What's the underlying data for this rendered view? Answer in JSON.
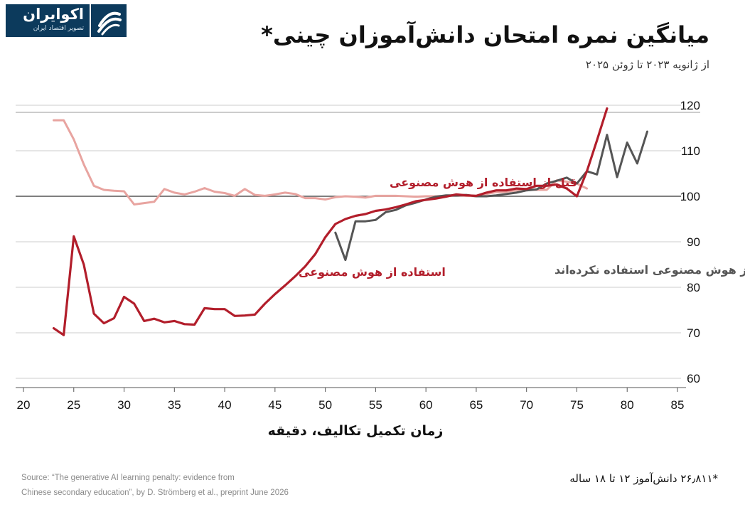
{
  "header": {
    "logo_name": "اکوایران",
    "logo_tagline": "تصویر اقتصاد ایران",
    "title": "میانگین نمره امتحان دانش‌آموزان چینی*",
    "subtitle": "از ژانویه ۲۰۲۳ تا ژوئن ۲۰۲۵"
  },
  "footer": {
    "source_line1": "Source: “The generative AI learning penalty: evidence from",
    "source_line2": "Chinese secondary education”, by D. Strömberg et al., preprint June 2026",
    "footnote": "*۲۶٫۸۱۱ دانش‌آموز ۱۲ تا ۱۸ ساله"
  },
  "colors": {
    "brand": "#0c3a5c",
    "grid": "#cccccc",
    "baseline": "#555555"
  },
  "chart_data": {
    "type": "line",
    "xlabel": "زمان تکمیل تکالیف، دقیقه",
    "ylabel": "",
    "xlim": [
      19,
      87
    ],
    "ylim": [
      58,
      122
    ],
    "xticks": [
      20,
      25,
      30,
      35,
      40,
      45,
      50,
      55,
      60,
      65,
      70,
      75,
      80,
      85
    ],
    "yticks": [
      60,
      70,
      80,
      90,
      100,
      110,
      120
    ],
    "reference_line": 100,
    "grid": "horizontal",
    "series": [
      {
        "name": "قبل از استفاده از هوش مصنوعی",
        "color": "#e8a4a0",
        "points": [
          [
            23,
            116.7
          ],
          [
            24,
            116.7
          ],
          [
            25,
            112.5
          ],
          [
            26,
            107
          ],
          [
            27,
            102.3
          ],
          [
            28,
            101.4
          ],
          [
            29,
            101.2
          ],
          [
            30,
            101.1
          ],
          [
            31,
            98.2
          ],
          [
            32,
            98.5
          ],
          [
            33,
            98.8
          ],
          [
            34,
            101.6
          ],
          [
            35,
            100.8
          ],
          [
            36,
            100.4
          ],
          [
            37,
            101
          ],
          [
            38,
            101.8
          ],
          [
            39,
            101
          ],
          [
            40,
            100.7
          ],
          [
            41,
            100.1
          ],
          [
            42,
            101.6
          ],
          [
            43,
            100.3
          ],
          [
            44,
            100.1
          ],
          [
            45,
            100.4
          ],
          [
            46,
            100.8
          ],
          [
            47,
            100.5
          ],
          [
            48,
            99.6
          ],
          [
            49,
            99.6
          ],
          [
            50,
            99.3
          ],
          [
            51,
            99.8
          ],
          [
            52,
            100
          ],
          [
            53,
            99.9
          ],
          [
            54,
            99.7
          ],
          [
            55,
            100.1
          ],
          [
            56,
            100.1
          ],
          [
            57,
            100.1
          ],
          [
            58,
            100
          ],
          [
            59,
            99.9
          ],
          [
            60,
            100
          ],
          [
            61,
            100
          ],
          [
            62,
            100.1
          ],
          [
            63,
            100.2
          ],
          [
            64,
            100.1
          ],
          [
            65,
            100
          ],
          [
            66,
            100.5
          ],
          [
            67,
            100.9
          ],
          [
            68,
            101
          ],
          [
            69,
            101.3
          ],
          [
            70,
            101.5
          ],
          [
            71,
            101.4
          ],
          [
            72,
            101.4
          ],
          [
            73,
            103.5
          ],
          [
            74,
            103.2
          ],
          [
            75,
            102.8
          ],
          [
            76,
            101.7
          ]
        ]
      },
      {
        "name": "هرگز از هوش مصنوعی استفاده نکرده‌اند",
        "color": "#555555",
        "points": [
          [
            51,
            92
          ],
          [
            52,
            86
          ],
          [
            53,
            94.5
          ],
          [
            54,
            94.5
          ],
          [
            55,
            94.8
          ],
          [
            56,
            96.5
          ],
          [
            57,
            97
          ],
          [
            58,
            98
          ],
          [
            59,
            98.6
          ],
          [
            60,
            99.3
          ],
          [
            61,
            99.9
          ],
          [
            62,
            100.2
          ],
          [
            63,
            100.2
          ],
          [
            64,
            100.3
          ],
          [
            65,
            100
          ],
          [
            66,
            100
          ],
          [
            67,
            100.2
          ],
          [
            68,
            100.5
          ],
          [
            69,
            100.8
          ],
          [
            70,
            101.3
          ],
          [
            71,
            101.5
          ],
          [
            72,
            102.8
          ],
          [
            73,
            103.4
          ],
          [
            74,
            104.1
          ],
          [
            75,
            102.8
          ],
          [
            76,
            105.5
          ],
          [
            77,
            104.8
          ],
          [
            78,
            113.5
          ],
          [
            79,
            104.2
          ],
          [
            80,
            111.8
          ],
          [
            81,
            107.2
          ],
          [
            82,
            114.2
          ]
        ]
      },
      {
        "name": "استفاده از هوش مصنوعی",
        "color": "#b21e2b",
        "points": [
          [
            23,
            71
          ],
          [
            24,
            69.5
          ],
          [
            25,
            91.2
          ],
          [
            26,
            85
          ],
          [
            27,
            74.2
          ],
          [
            28,
            72.1
          ],
          [
            29,
            73.2
          ],
          [
            30,
            77.9
          ],
          [
            31,
            76.4
          ],
          [
            32,
            72.6
          ],
          [
            33,
            73.1
          ],
          [
            34,
            72.3
          ],
          [
            35,
            72.6
          ],
          [
            36,
            71.9
          ],
          [
            37,
            71.8
          ],
          [
            38,
            75.4
          ],
          [
            39,
            75.2
          ],
          [
            40,
            75.2
          ],
          [
            41,
            73.7
          ],
          [
            42,
            73.8
          ],
          [
            43,
            74
          ],
          [
            44,
            76.4
          ],
          [
            45,
            78.5
          ],
          [
            46,
            80.4
          ],
          [
            47,
            82.4
          ],
          [
            48,
            84.6
          ],
          [
            49,
            87.3
          ],
          [
            50,
            91
          ],
          [
            51,
            93.9
          ],
          [
            52,
            95
          ],
          [
            53,
            95.7
          ],
          [
            54,
            96.1
          ],
          [
            55,
            96.8
          ],
          [
            56,
            97.1
          ],
          [
            57,
            97.6
          ],
          [
            58,
            98.2
          ],
          [
            59,
            98.9
          ],
          [
            60,
            99.2
          ],
          [
            61,
            99.5
          ],
          [
            62,
            99.9
          ],
          [
            63,
            100.4
          ],
          [
            64,
            100.2
          ],
          [
            65,
            100.1
          ],
          [
            66,
            100.8
          ],
          [
            67,
            101.3
          ],
          [
            68,
            101.3
          ],
          [
            69,
            101.7
          ],
          [
            70,
            101.6
          ],
          [
            71,
            102.3
          ],
          [
            72,
            102.3
          ],
          [
            73,
            102.6
          ],
          [
            74,
            101.7
          ],
          [
            75,
            100
          ],
          [
            76,
            105.5
          ],
          [
            77,
            112.3
          ],
          [
            78,
            119.3
          ]
        ]
      }
    ],
    "annotations": [
      {
        "series": 0,
        "text": "قبل از استفاده از هوش مصنوعی"
      },
      {
        "series": 1,
        "text": "هرگز از هوش مصنوعی استفاده نکرده‌اند"
      },
      {
        "series": 2,
        "text": "استفاده از هوش مصنوعی"
      }
    ]
  }
}
